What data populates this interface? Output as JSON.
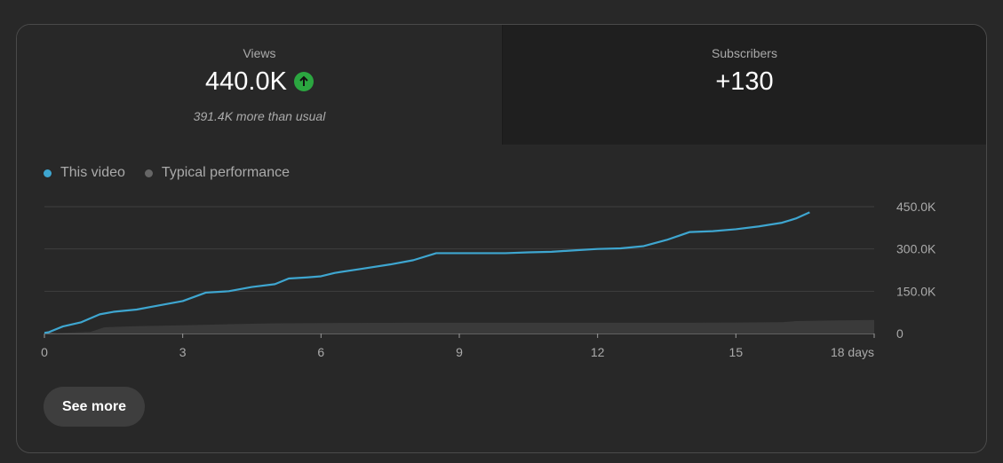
{
  "colors": {
    "accent": "#3ea6d0",
    "typical": "#3a3a3a",
    "up": "#2ba640"
  },
  "tabs": {
    "views": {
      "label": "Views",
      "value": "440.0K",
      "note": "391.4K more than usual",
      "trend_icon": "arrow-up-icon"
    },
    "subscribers": {
      "label": "Subscribers",
      "value": "+130"
    }
  },
  "see_more": "See more",
  "chart_data": {
    "type": "line",
    "legend_placement": "top-left",
    "grid": true,
    "xlim": [
      0,
      18
    ],
    "ylim": [
      0,
      450000
    ],
    "x_ticks": [
      {
        "value": 0,
        "label": "0"
      },
      {
        "value": 3,
        "label": "3"
      },
      {
        "value": 6,
        "label": "6"
      },
      {
        "value": 9,
        "label": "9"
      },
      {
        "value": 12,
        "label": "12"
      },
      {
        "value": 15,
        "label": "15"
      },
      {
        "value": 18,
        "label": "18 days"
      }
    ],
    "y_ticks": [
      {
        "value": 0,
        "label": "0"
      },
      {
        "value": 150000,
        "label": "150.0K"
      },
      {
        "value": 300000,
        "label": "300.0K"
      },
      {
        "value": 450000,
        "label": "450.0K"
      }
    ],
    "series": [
      {
        "name": "This video",
        "kind": "line",
        "x": [
          0,
          0.1,
          0.4,
          0.8,
          1.2,
          1.5,
          2,
          2.5,
          3,
          3.5,
          4,
          4.5,
          5,
          5.3,
          5.7,
          6,
          6.3,
          6.9,
          7.5,
          8,
          8.5,
          9,
          9.5,
          10,
          10.5,
          11,
          11.5,
          12,
          12.5,
          13,
          13.5,
          14,
          14.5,
          15,
          15.5,
          16,
          16.3,
          16.6
        ],
        "y": [
          2000,
          5000,
          25000,
          40000,
          68000,
          77000,
          85000,
          100000,
          115000,
          145000,
          150000,
          165000,
          175000,
          195000,
          199000,
          203000,
          215000,
          230000,
          245000,
          260000,
          285000,
          285000,
          285000,
          285000,
          288000,
          290000,
          295000,
          300000,
          302000,
          310000,
          332000,
          360000,
          363000,
          370000,
          380000,
          393000,
          408000,
          430000
        ]
      },
      {
        "name": "Typical performance",
        "kind": "area",
        "x": [
          0,
          1,
          1.3,
          2,
          3,
          4,
          5,
          6,
          8,
          10,
          12,
          14,
          15,
          16,
          16.3,
          17,
          18
        ],
        "y": [
          0,
          6000,
          22000,
          26000,
          29000,
          33000,
          36000,
          37000,
          38000,
          38000,
          38000,
          38000,
          39000,
          40000,
          44000,
          46000,
          48000
        ]
      }
    ]
  }
}
